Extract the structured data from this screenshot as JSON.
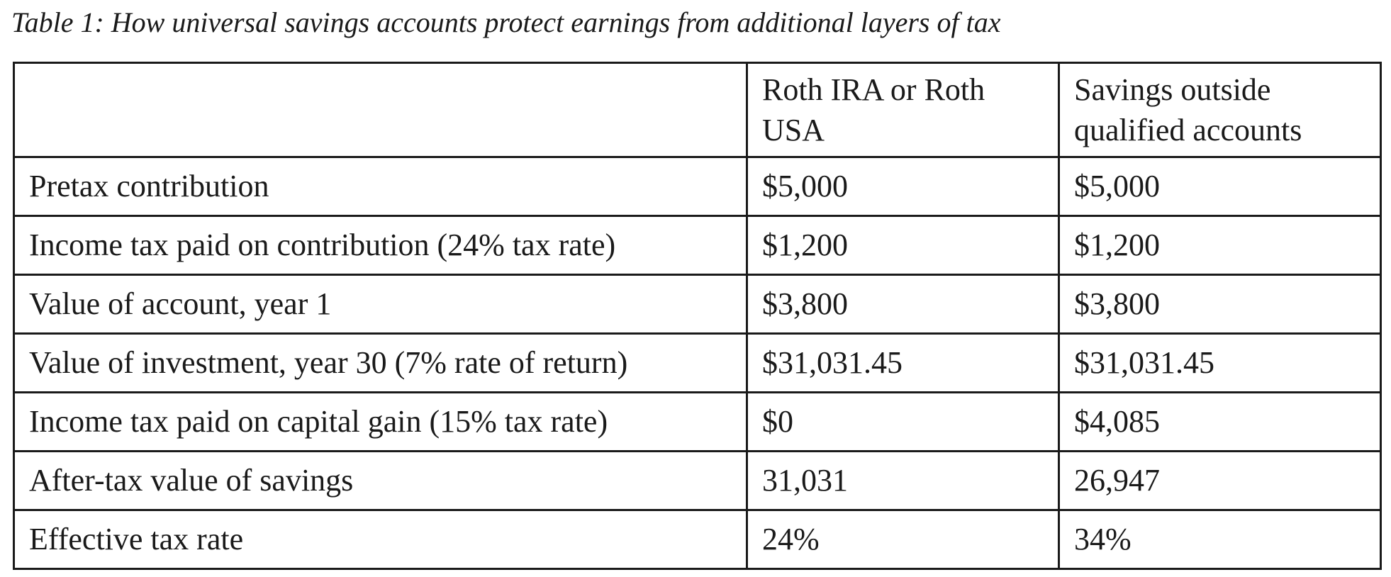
{
  "caption": "Table 1: How universal savings accounts protect earnings from additional layers of tax",
  "table": {
    "columns": [
      "",
      "Roth IRA or Roth USA",
      "Savings outside qualified accounts"
    ],
    "rows": [
      {
        "label": "Pretax contribution",
        "roth": "$5,000",
        "outside": "$5,000"
      },
      {
        "label": "Income tax paid on contribution (24% tax rate)",
        "roth": "$1,200",
        "outside": "$1,200"
      },
      {
        "label": "Value of account, year 1",
        "roth": "$3,800",
        "outside": "$3,800"
      },
      {
        "label": "Value of investment, year 30 (7% rate of return)",
        "roth": "$31,031.45",
        "outside": "$31,031.45"
      },
      {
        "label": "Income tax paid on capital gain (15% tax rate)",
        "roth": "$0",
        "outside": "$4,085"
      },
      {
        "label": "After-tax value of savings",
        "roth": "31,031",
        "outside": "26,947"
      },
      {
        "label": "Effective tax rate",
        "roth": "24%",
        "outside": "34%"
      }
    ]
  }
}
